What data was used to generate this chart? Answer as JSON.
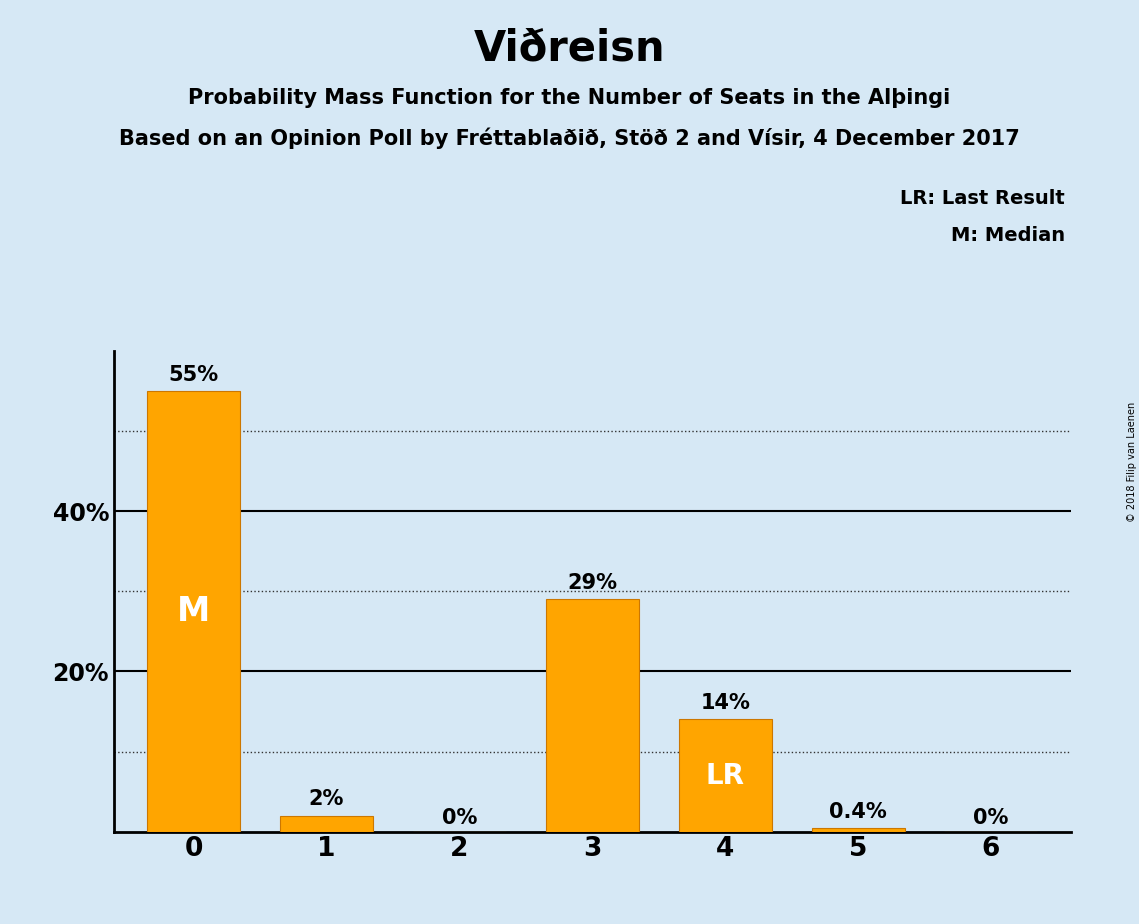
{
  "title": "Viðreisn",
  "subtitle1": "Probability Mass Function for the Number of Seats in the Alþingi",
  "subtitle2": "Based on an Opinion Poll by Fréttablaðið, Stöð 2 and Vísir, 4 December 2017",
  "copyright": "© 2018 Filip van Laenen",
  "legend_lr": "LR: Last Result",
  "legend_m": "M: Median",
  "categories": [
    0,
    1,
    2,
    3,
    4,
    5,
    6
  ],
  "values": [
    55,
    2,
    0,
    29,
    14,
    0.4,
    0
  ],
  "bar_color": "#FFA500",
  "bar_edge_color": "#CC7700",
  "background_color": "#D6E8F5",
  "ylim": [
    0,
    60
  ],
  "solid_gridlines": [
    20,
    40
  ],
  "dotted_gridlines": [
    10,
    30,
    50
  ],
  "bar_labels": [
    "55%",
    "2%",
    "0%",
    "29%",
    "14%",
    "0.4%",
    "0%"
  ],
  "median_bar": 0,
  "last_result_bar": 4,
  "label_fontsize": 15,
  "title_fontsize": 30,
  "subtitle_fontsize": 15,
  "ytick_fontsize": 17,
  "xtick_fontsize": 19,
  "legend_fontsize": 14
}
